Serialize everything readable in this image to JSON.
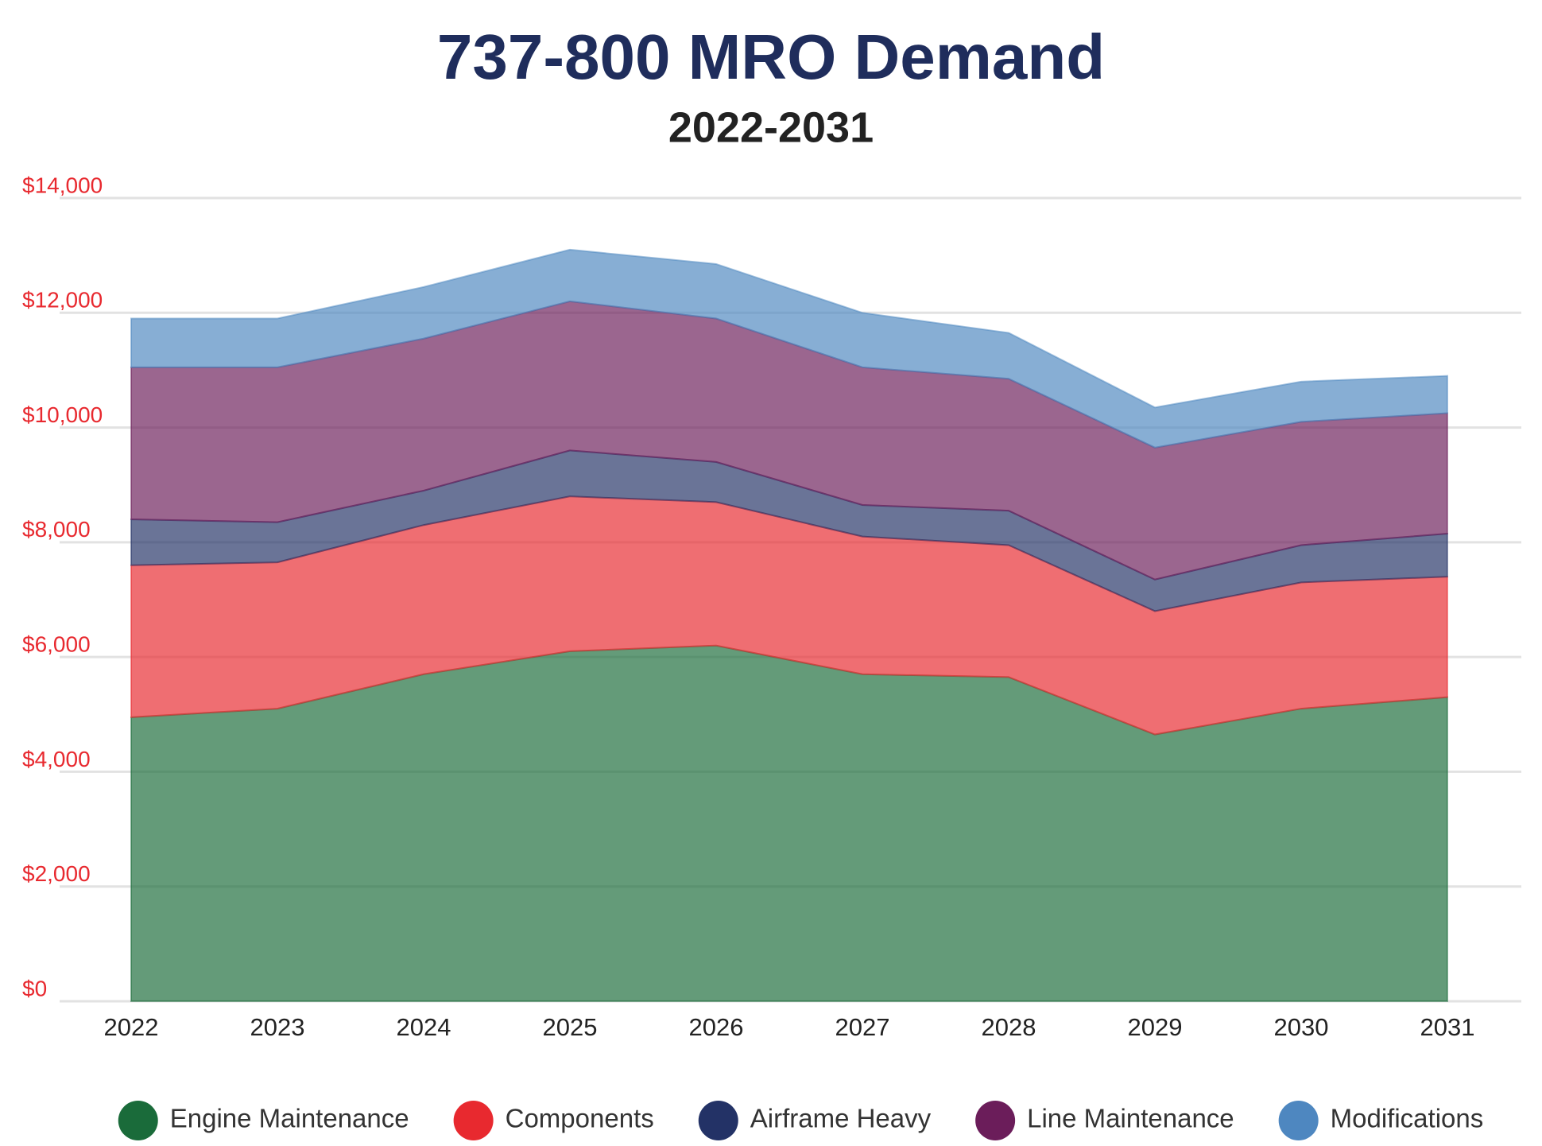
{
  "chart_data": {
    "type": "stacked-area",
    "title": "737-800 MRO Demand",
    "subtitle": "2022-2031",
    "categories": [
      "2022",
      "2023",
      "2024",
      "2025",
      "2026",
      "2027",
      "2028",
      "2029",
      "2030",
      "2031"
    ],
    "series": [
      {
        "name": "Engine Maintenance",
        "color": "#1a6b3a",
        "values": [
          4950,
          5100,
          5700,
          6100,
          6200,
          5700,
          5650,
          4650,
          5100,
          5300
        ]
      },
      {
        "name": "Components",
        "color": "#e8292f",
        "values": [
          2650,
          2550,
          2600,
          2700,
          2500,
          2400,
          2300,
          2150,
          2200,
          2100
        ]
      },
      {
        "name": "Airframe Heavy",
        "color": "#233266",
        "values": [
          800,
          700,
          600,
          800,
          700,
          550,
          600,
          550,
          650,
          750
        ]
      },
      {
        "name": "Line Maintenance",
        "color": "#6b1d5a",
        "values": [
          2650,
          2700,
          2650,
          2600,
          2500,
          2400,
          2300,
          2300,
          2150,
          2100
        ]
      },
      {
        "name": "Modifications",
        "color": "#4e87c0",
        "values": [
          850,
          850,
          900,
          900,
          950,
          950,
          800,
          700,
          700,
          650
        ]
      }
    ],
    "ylim": [
      0,
      14000
    ],
    "yticks": [
      {
        "value": 0,
        "label": "$0"
      },
      {
        "value": 2000,
        "label": "$2,000"
      },
      {
        "value": 4000,
        "label": "$4,000"
      },
      {
        "value": 6000,
        "label": "$6,000"
      },
      {
        "value": 8000,
        "label": "$8,000"
      },
      {
        "value": 10000,
        "label": "$10,000"
      },
      {
        "value": 12000,
        "label": "$12,000"
      },
      {
        "value": 14000,
        "label": "$14,000"
      }
    ],
    "grid": true,
    "legend": "bottom"
  }
}
